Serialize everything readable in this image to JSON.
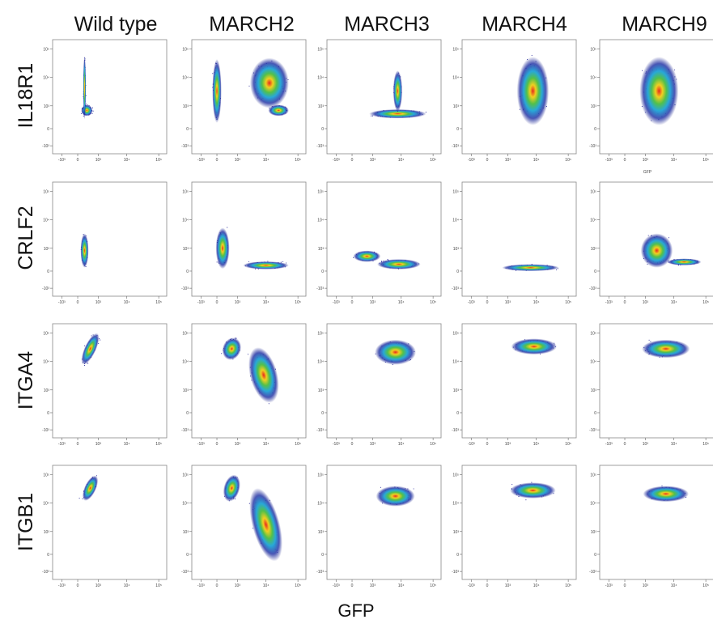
{
  "columns": [
    "Wild type",
    "MARCH2",
    "MARCH3",
    "MARCH4",
    "MARCH9"
  ],
  "rows": [
    "IL18R1",
    "CRLF2",
    "ITGA4",
    "ITGB1"
  ],
  "x_label": "GFP",
  "panel_x_label": "GFP",
  "axis_tick_labels": [
    "-10³",
    "0",
    "10³",
    "10⁴",
    "10⁵"
  ]
}
